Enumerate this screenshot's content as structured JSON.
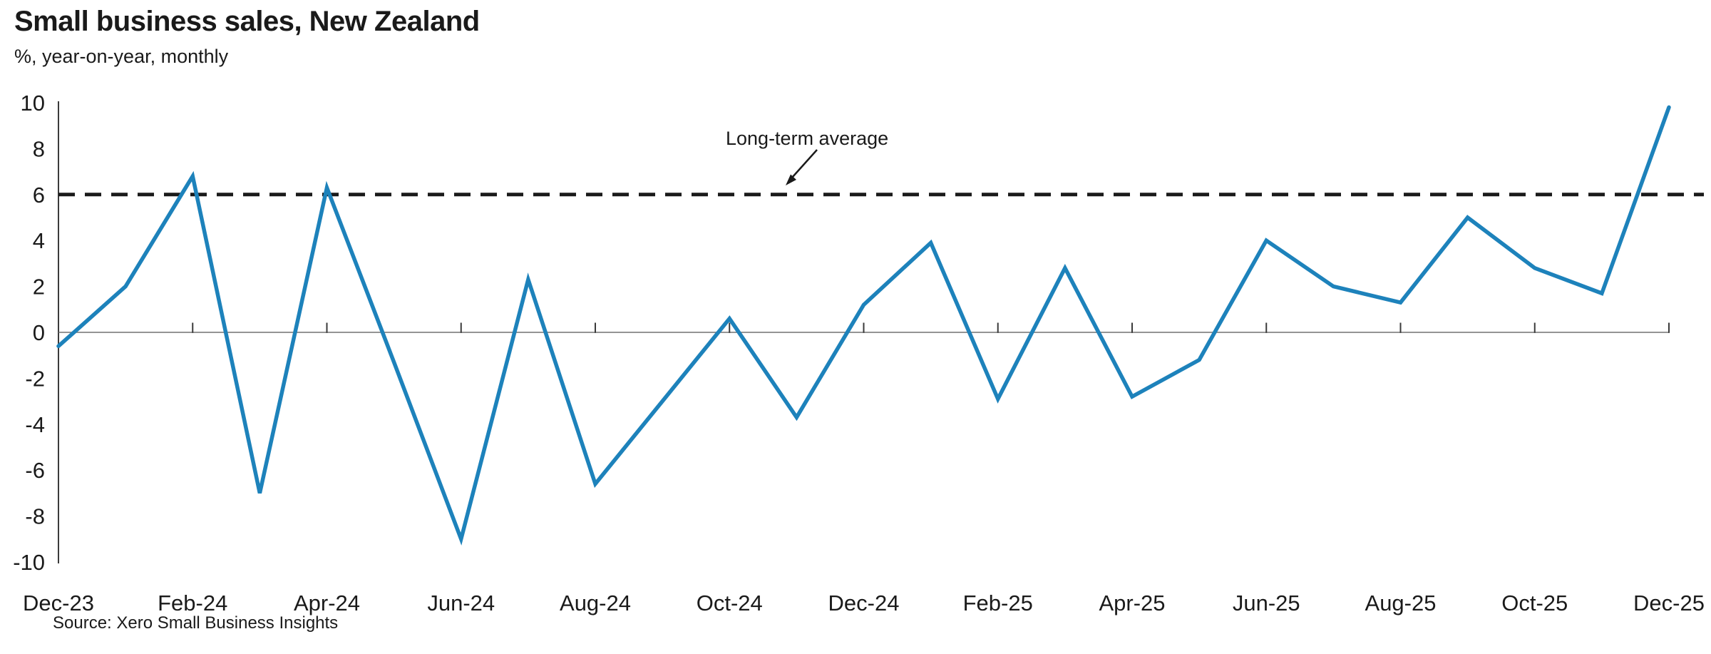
{
  "header": {
    "title": "Small business sales, New Zealand",
    "subtitle": "%, year-on-year, monthly"
  },
  "footer": {
    "source": "Source: Xero Small Business Insights"
  },
  "annotation": {
    "label": "Long-term average"
  },
  "colors": {
    "series_line": "#1d82bb",
    "average_line": "#1a1a1a",
    "axis_line": "#3a3a3a",
    "zero_line": "#707070",
    "text": "#1a1a1a"
  },
  "chart_data": {
    "type": "line",
    "title": "Small business sales, New Zealand",
    "subtitle": "%, year-on-year, monthly",
    "x": [
      "Dec-23",
      "Jan-24",
      "Feb-24",
      "Mar-24",
      "Apr-24",
      "May-24",
      "Jun-24",
      "Jul-24",
      "Aug-24",
      "Sep-24",
      "Oct-24",
      "Nov-24",
      "Dec-24",
      "Jan-25",
      "Feb-25",
      "Mar-25",
      "Apr-25",
      "May-25",
      "Jun-25",
      "Jul-25",
      "Aug-25",
      "Sep-25",
      "Oct-25",
      "Nov-25",
      "Dec-25"
    ],
    "series": [
      {
        "name": "Small business sales, year-on-year %",
        "values": [
          -0.6,
          2.0,
          6.8,
          -7.0,
          6.3,
          -1.3,
          -9.0,
          2.3,
          -6.6,
          -3.0,
          0.6,
          -3.7,
          1.2,
          3.9,
          -2.9,
          2.8,
          -2.8,
          -1.2,
          4.0,
          2.0,
          1.3,
          5.0,
          2.8,
          1.7,
          9.8
        ]
      }
    ],
    "long_term_average": 6.0,
    "annotations": [
      {
        "text": "Long-term average",
        "type": "dashed-horizontal-line",
        "y": 6.0
      }
    ],
    "xlabel": "",
    "ylabel": "",
    "ylim": [
      -10,
      10
    ],
    "y_ticks": [
      10,
      8,
      6,
      4,
      2,
      0,
      -2,
      -4,
      -6,
      -8,
      -10
    ],
    "x_tick_labels": [
      "Dec-23",
      "Feb-24",
      "Apr-24",
      "Jun-24",
      "Aug-24",
      "Oct-24",
      "Dec-24",
      "Feb-25",
      "Apr-25",
      "Jun-25",
      "Aug-25",
      "Oct-25",
      "Dec-25"
    ],
    "grid": "none",
    "legend": "none"
  }
}
